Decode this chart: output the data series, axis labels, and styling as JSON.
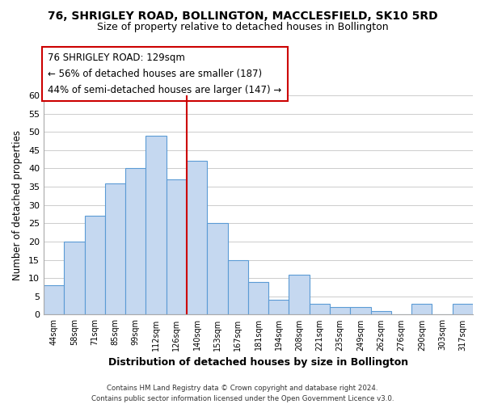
{
  "title": "76, SHRIGLEY ROAD, BOLLINGTON, MACCLESFIELD, SK10 5RD",
  "subtitle": "Size of property relative to detached houses in Bollington",
  "xlabel": "Distribution of detached houses by size in Bollington",
  "ylabel": "Number of detached properties",
  "footer_line1": "Contains HM Land Registry data © Crown copyright and database right 2024.",
  "footer_line2": "Contains public sector information licensed under the Open Government Licence v3.0.",
  "bin_labels": [
    "44sqm",
    "58sqm",
    "71sqm",
    "85sqm",
    "99sqm",
    "112sqm",
    "126sqm",
    "140sqm",
    "153sqm",
    "167sqm",
    "181sqm",
    "194sqm",
    "208sqm",
    "221sqm",
    "235sqm",
    "249sqm",
    "262sqm",
    "276sqm",
    "290sqm",
    "303sqm",
    "317sqm"
  ],
  "bar_heights": [
    8,
    20,
    27,
    36,
    40,
    49,
    37,
    42,
    25,
    15,
    9,
    4,
    11,
    3,
    2,
    2,
    1,
    0,
    3,
    0,
    3
  ],
  "bar_color": "#c5d8f0",
  "bar_edge_color": "#5b9bd5",
  "reference_line_color": "#cc0000",
  "reference_bar_index": 6,
  "ylim": [
    0,
    60
  ],
  "yticks": [
    0,
    5,
    10,
    15,
    20,
    25,
    30,
    35,
    40,
    45,
    50,
    55,
    60
  ],
  "annotation_title": "76 SHRIGLEY ROAD: 129sqm",
  "annotation_line1": "← 56% of detached houses are smaller (187)",
  "annotation_line2": "44% of semi-detached houses are larger (147) →",
  "annotation_box_color": "#ffffff",
  "annotation_box_edge": "#cc0000",
  "grid_color": "#cccccc",
  "background_color": "#ffffff",
  "title_fontsize": 10,
  "subtitle_fontsize": 9
}
